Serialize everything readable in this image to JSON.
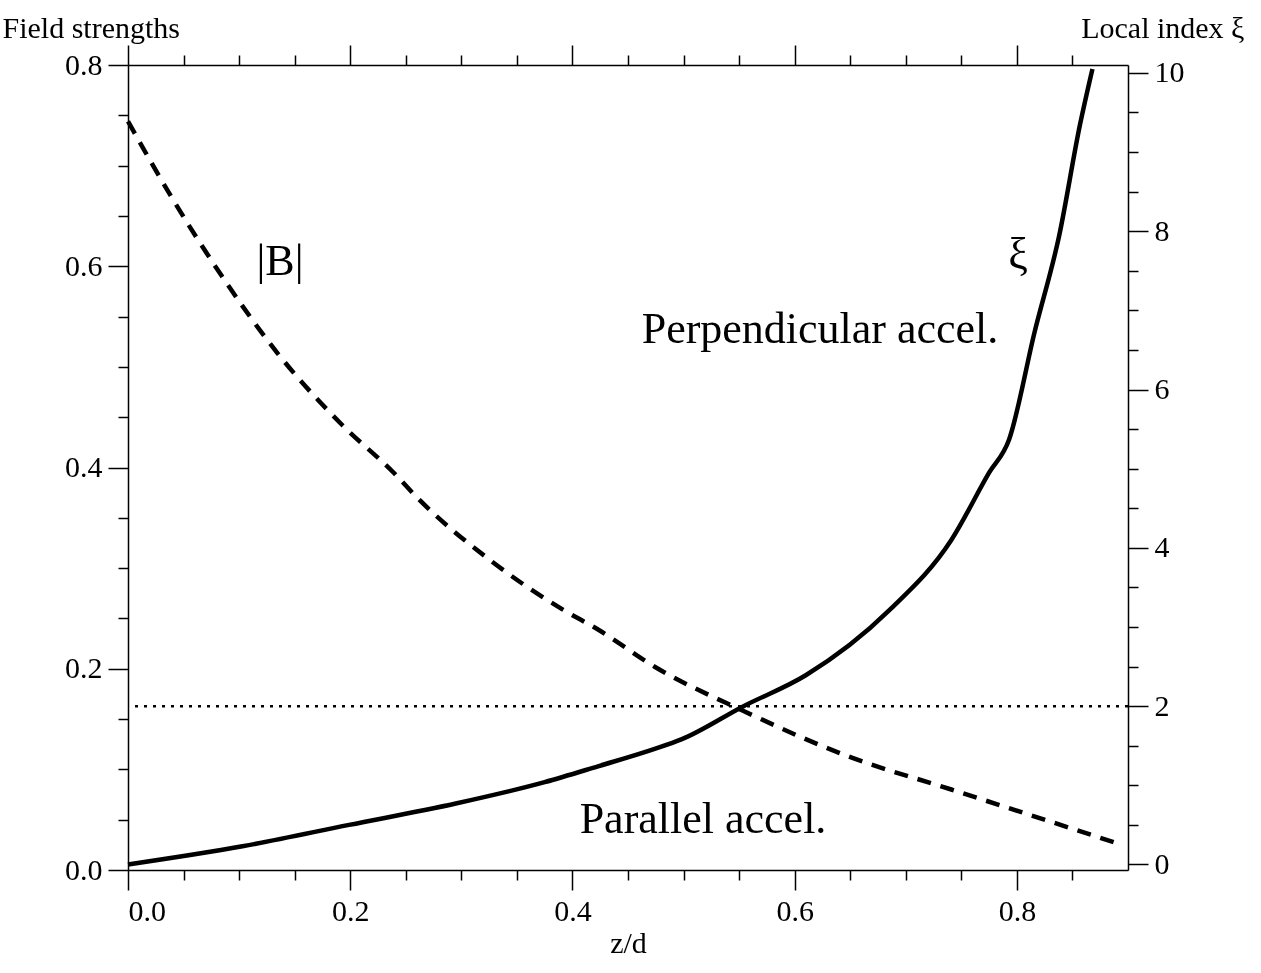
{
  "chart_data": {
    "type": "line",
    "xlabel": "z/d",
    "ylabel": "Field strengths",
    "y2label": "Local index ξ",
    "xlim": [
      0,
      0.9
    ],
    "ylim": [
      0,
      0.8
    ],
    "y2lim": [
      -0.07,
      10.1
    ],
    "xticks": [
      {
        "value": 0,
        "label": "0.0"
      },
      {
        "value": 0.05,
        "label": null
      },
      {
        "value": 0.1,
        "label": null
      },
      {
        "value": 0.15,
        "label": null
      },
      {
        "value": 0.2,
        "label": "0.2"
      },
      {
        "value": 0.25,
        "label": null
      },
      {
        "value": 0.3,
        "label": null
      },
      {
        "value": 0.35,
        "label": null
      },
      {
        "value": 0.4,
        "label": "0.4"
      },
      {
        "value": 0.45,
        "label": null
      },
      {
        "value": 0.5,
        "label": null
      },
      {
        "value": 0.55,
        "label": null
      },
      {
        "value": 0.6,
        "label": "0.6"
      },
      {
        "value": 0.65,
        "label": null
      },
      {
        "value": 0.7,
        "label": null
      },
      {
        "value": 0.75,
        "label": null
      },
      {
        "value": 0.8,
        "label": "0.8"
      },
      {
        "value": 0.85,
        "label": null
      }
    ],
    "yticks": [
      {
        "value": 0,
        "label": "0.0"
      },
      {
        "value": 0.05,
        "label": null
      },
      {
        "value": 0.1,
        "label": null
      },
      {
        "value": 0.15,
        "label": null
      },
      {
        "value": 0.2,
        "label": "0.2"
      },
      {
        "value": 0.25,
        "label": null
      },
      {
        "value": 0.3,
        "label": null
      },
      {
        "value": 0.35,
        "label": null
      },
      {
        "value": 0.4,
        "label": "0.4"
      },
      {
        "value": 0.45,
        "label": null
      },
      {
        "value": 0.5,
        "label": null
      },
      {
        "value": 0.55,
        "label": null
      },
      {
        "value": 0.6,
        "label": "0.6"
      },
      {
        "value": 0.65,
        "label": null
      },
      {
        "value": 0.7,
        "label": null
      },
      {
        "value": 0.75,
        "label": null
      },
      {
        "value": 0.8,
        "label": "0.8"
      }
    ],
    "y2ticks": [
      0,
      {
        "value": 0.5,
        "label": null
      },
      {
        "value": 1,
        "label": null
      },
      {
        "value": 1.5,
        "label": null
      },
      2,
      {
        "value": 2.5,
        "label": null
      },
      {
        "value": 3,
        "label": null
      },
      {
        "value": 3.5,
        "label": null
      },
      4,
      {
        "value": 4.5,
        "label": null
      },
      {
        "value": 5,
        "label": null
      },
      {
        "value": 5.5,
        "label": null
      },
      6,
      {
        "value": 6.5,
        "label": null
      },
      {
        "value": 7,
        "label": null
      },
      {
        "value": 7.5,
        "label": null
      },
      8,
      {
        "value": 8.5,
        "label": null
      },
      {
        "value": 9,
        "label": null
      },
      {
        "value": 9.5,
        "label": null
      },
      10
    ],
    "series": [
      {
        "name": "|B|",
        "color": "#000000",
        "line_style": "dashed",
        "axis": "y",
        "x": [
          0,
          0.039,
          0.084,
          0.135,
          0.193,
          0.238,
          0.263,
          0.327,
          0.391,
          0.423,
          0.474,
          0.554,
          0.648,
          0.741,
          0.889
        ],
        "values": [
          0.744,
          0.669,
          0.591,
          0.513,
          0.442,
          0.396,
          0.367,
          0.307,
          0.259,
          0.239,
          0.202,
          0.158,
          0.113,
          0.08,
          0.027
        ]
      },
      {
        "name": "ξ",
        "color": "#000000",
        "line_style": "solid",
        "axis": "y2",
        "x": [
          0,
          0.103,
          0.199,
          0.295,
          0.375,
          0.423,
          0.474,
          0.498,
          0.554,
          0.61,
          0.685,
          0.741,
          0.775,
          0.793,
          0.816,
          0.838,
          0.857,
          0.868
        ],
        "values": [
          0,
          0.23,
          0.5,
          0.77,
          1.04,
          1.24,
          1.46,
          1.58,
          2.0,
          2.39,
          3.21,
          4.1,
          4.95,
          5.37,
          6.73,
          7.94,
          9.36,
          10.05
        ]
      }
    ],
    "ref_lines": [
      {
        "axis": "y2",
        "value": 2,
        "color": "#000000",
        "line_style": "dotted"
      }
    ],
    "annotations": [
      "Perpendicular accel.",
      "Parallel accel."
    ]
  }
}
